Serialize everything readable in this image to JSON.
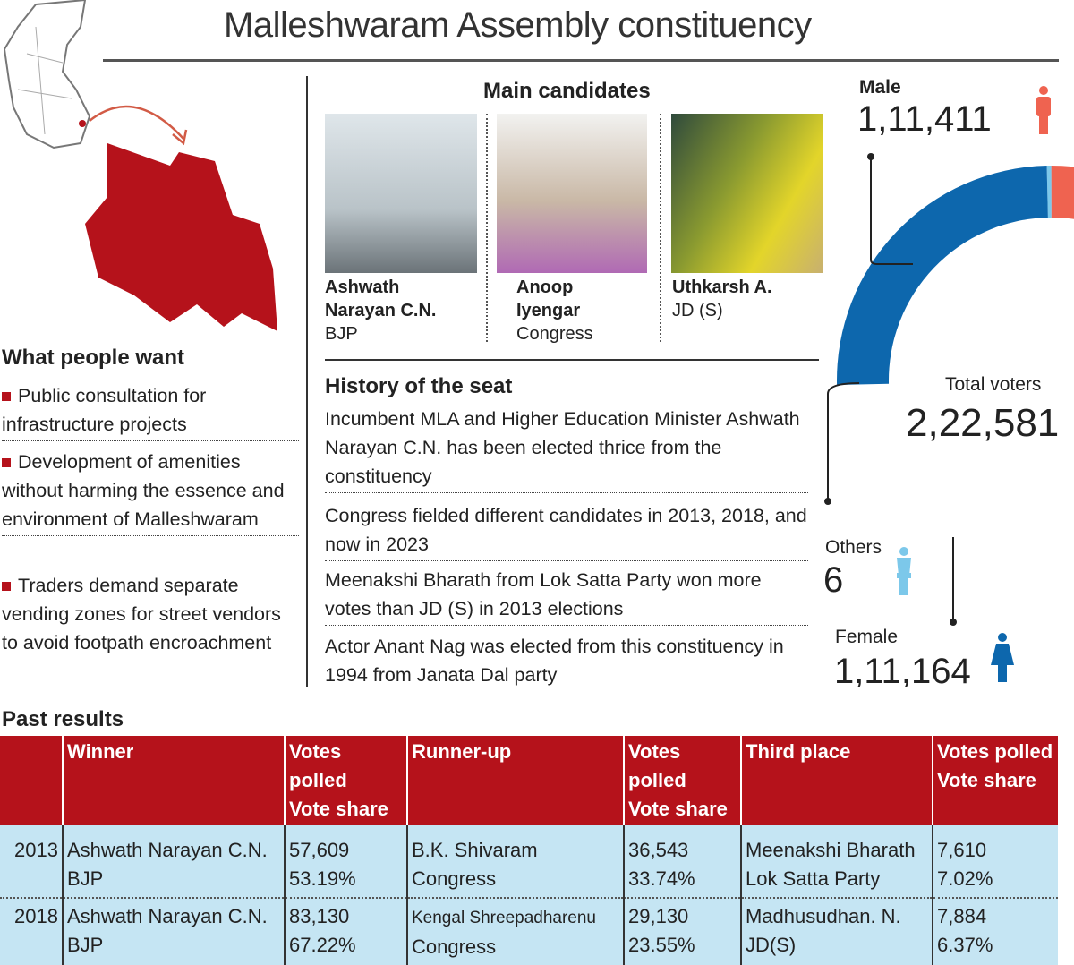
{
  "title": "Malleshwaram Assembly constituency",
  "people_want": {
    "heading": "What people want",
    "items": [
      "Public consultation for infrastructure projects",
      "Development of amenities without harming the essence and environment of Malleshwaram",
      "Traders demand separate vending zones for street vendors to avoid footpath encroachment"
    ]
  },
  "candidates": {
    "heading": "Main candidates",
    "list": [
      {
        "name1": "Ashwath",
        "name2": "Narayan C.N.",
        "party": "BJP"
      },
      {
        "name1": "Anoop",
        "name2": "Iyengar",
        "party": "Congress"
      },
      {
        "name1": "Uthkarsh A.",
        "name2": "",
        "party": "JD (S)"
      }
    ]
  },
  "history": {
    "heading": "History of the seat",
    "items": [
      "Incumbent MLA and Higher Education Minister Ashwath Narayan C.N. has been elected thrice from the constituency",
      "Congress fielded different candidates in 2013, 2018, and now in 2023",
      "Meenakshi Bharath from Lok Satta Party won more votes than JD (S) in 2013 elections",
      "Actor Anant Nag was elected from this constituency in 1994 from Janata Dal party"
    ]
  },
  "voters": {
    "male_label": "Male",
    "male": "1,11,411",
    "female_label": "Female",
    "female": "1,11,164",
    "others_label": "Others",
    "others": "6",
    "total_label": "Total voters",
    "total": "2,22,581",
    "colors": {
      "male": "#ef6350",
      "female": "#0d67ad",
      "others": "#7cc8ea"
    }
  },
  "chart_data": {
    "type": "pie",
    "title": "Total voters",
    "categories": [
      "Male",
      "Others",
      "Female"
    ],
    "values": [
      111411,
      6,
      111164
    ]
  },
  "past": {
    "heading": "Past  results",
    "headers": [
      "",
      "Winner",
      "Votes polled Vote share",
      "Runner-up",
      "Votes polled Vote share",
      "Third place",
      "Votes polled Vote share"
    ],
    "h": {
      "winner": "Winner",
      "runner": "Runner-up",
      "third": "Third place",
      "vp": "Votes polled",
      "vs": "Vote share"
    },
    "rows": [
      {
        "year": "2013",
        "winner": "Ashwath Narayan C.N.",
        "winner_party": "BJP",
        "wv": "57,609",
        "ws": "53.19%",
        "runner": "B.K. Shivaram",
        "runner_party": "Congress",
        "rv": "36,543",
        "rs": "33.74%",
        "third": "Meenakshi Bharath",
        "third_party": "Lok Satta Party",
        "tv": "7,610",
        "ts": "7.02%"
      },
      {
        "year": "2018",
        "winner": "Ashwath Narayan C.N.",
        "winner_party": "BJP",
        "wv": "83,130",
        "ws": "67.22%",
        "runner": "Kengal Shreepadharenu",
        "runner_party": "Congress",
        "rv": "29,130",
        "rs": "23.55%",
        "third": "Madhusudhan. N.",
        "third_party": "JD(S)",
        "tv": "7,884",
        "ts": "6.37%"
      }
    ]
  }
}
